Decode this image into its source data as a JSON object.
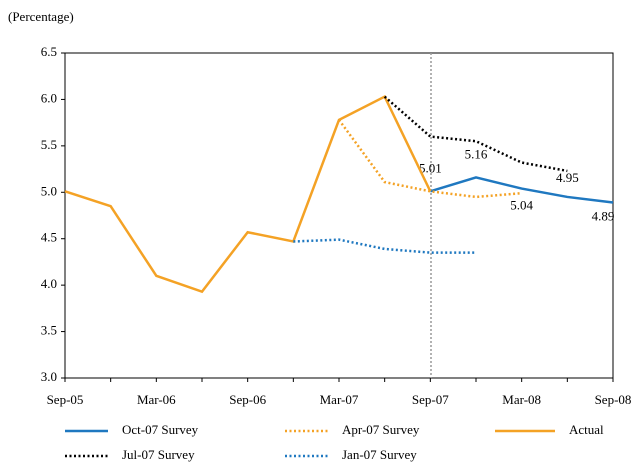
{
  "chart_data": {
    "type": "line",
    "ylabel": "(Percentage)",
    "categories": [
      "Sep-05",
      null,
      "Mar-06",
      null,
      "Sep-06",
      null,
      "Mar-07",
      null,
      "Sep-07",
      null,
      "Mar-08",
      null,
      "Sep-08"
    ],
    "ylim": [
      3,
      6.5
    ],
    "yticks": [
      {
        "value": 3,
        "label": "3.0"
      },
      3.5,
      {
        "value": 4,
        "label": "4.0"
      },
      4.5,
      {
        "value": 5,
        "label": "5.0"
      },
      5.5,
      {
        "value": 6,
        "label": "6.0"
      },
      6.5
    ],
    "series": [
      {
        "name": "Oct-07 Survey",
        "color": "#1f78c0",
        "dashed": false,
        "show_values": true,
        "values": [
          null,
          null,
          null,
          null,
          null,
          null,
          null,
          null,
          5.01,
          5.16,
          5.04,
          4.95,
          4.89
        ]
      },
      {
        "name": "Apr-07 Survey",
        "color": "#f4a225",
        "dashed": true,
        "values": [
          null,
          null,
          null,
          null,
          null,
          null,
          5.78,
          5.11,
          5.01,
          4.95,
          4.99,
          null,
          null
        ]
      },
      {
        "name": "Actual",
        "color": "#f4a225",
        "dashed": false,
        "values": [
          5.01,
          4.85,
          4.1,
          3.93,
          4.57,
          4.47,
          5.78,
          6.03,
          5.01,
          null,
          null,
          null,
          null
        ]
      },
      {
        "name": "Jul-07 Survey",
        "color": "#000000",
        "dashed": true,
        "values": [
          null,
          null,
          null,
          null,
          null,
          null,
          null,
          6.03,
          5.6,
          5.55,
          5.32,
          5.23,
          null
        ]
      },
      {
        "name": "Jan-07 Survey",
        "color": "#1f78c0",
        "dashed": true,
        "values": [
          null,
          null,
          null,
          null,
          null,
          4.47,
          4.49,
          4.39,
          4.35,
          4.35,
          null,
          null,
          null
        ]
      }
    ]
  }
}
